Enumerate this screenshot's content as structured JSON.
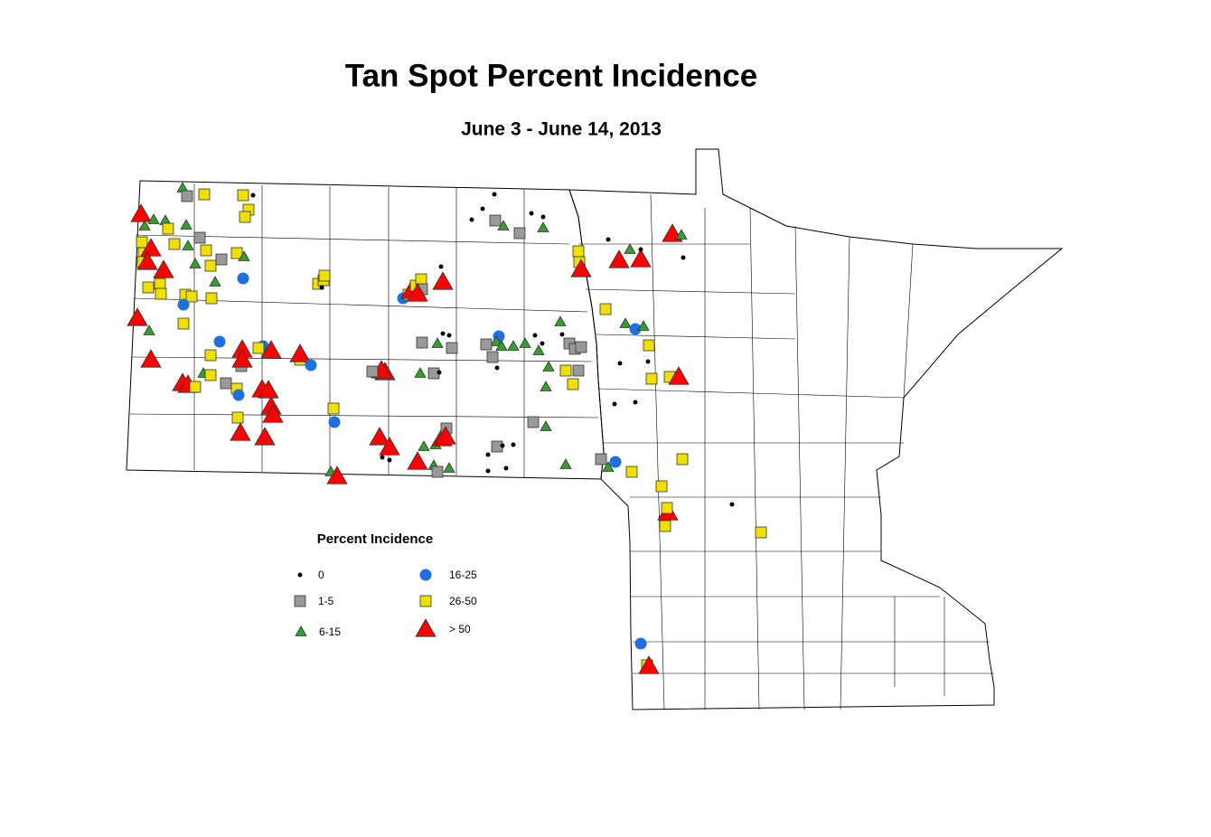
{
  "title": "Tan Spot Percent Incidence",
  "subtitle": "June 3 - June 14, 2013",
  "legend": {
    "title": "Percent Incidence",
    "items": [
      {
        "label": "0",
        "marker": "dot",
        "color": "#000000"
      },
      {
        "label": "1-5",
        "marker": "square",
        "color": "#999999"
      },
      {
        "label": "6-15",
        "marker": "triangle",
        "color": "#33a02c"
      },
      {
        "label": "16-25",
        "marker": "circle",
        "color": "#1f6fe0"
      },
      {
        "label": "26-50",
        "marker": "square",
        "color": "#f0e000"
      },
      {
        "label": "> 50",
        "marker": "triangle",
        "color": "#ff0000"
      }
    ]
  }
}
